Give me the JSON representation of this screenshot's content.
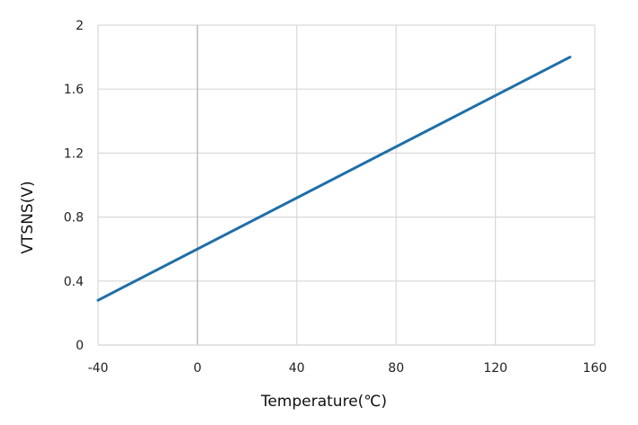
{
  "chart_data": {
    "type": "line",
    "xlabel": "Temperature(℃)",
    "ylabel": "VTSNS(V)",
    "xlim": [
      -40,
      160
    ],
    "ylim": [
      0,
      2
    ],
    "x_ticks": [
      -40,
      0,
      40,
      80,
      120,
      160
    ],
    "y_ticks": [
      0,
      0.4,
      0.8,
      1.2,
      1.6,
      2
    ],
    "x_tick_labels": [
      "-40",
      "0",
      "40",
      "80",
      "120",
      "160"
    ],
    "y_tick_labels": [
      "0",
      "0.4",
      "0.8",
      "1.2",
      "1.6",
      "2"
    ],
    "grid": true,
    "series": [
      {
        "color": "#1f6fa8",
        "x": [
          -40,
          150
        ],
        "y": [
          0.28,
          1.8
        ]
      }
    ]
  }
}
